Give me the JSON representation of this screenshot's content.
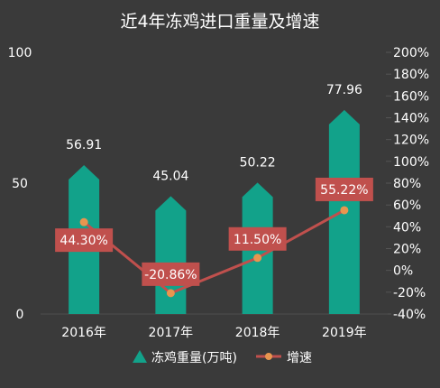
{
  "chart_data": {
    "type": "bar",
    "title": "近4年冻鸡进口重量及增速",
    "categories": [
      "2016年",
      "2017年",
      "2018年",
      "2019年"
    ],
    "series": [
      {
        "name": "冻鸡重量(万吨)",
        "type": "bar",
        "axis": "left",
        "values": [
          56.91,
          45.04,
          50.22,
          77.96
        ],
        "labels": [
          "56.91",
          "45.04",
          "50.22",
          "77.96"
        ],
        "color": "#12a28a"
      },
      {
        "name": "增速",
        "type": "line",
        "axis": "right",
        "values": [
          44.3,
          -20.86,
          11.5,
          55.22
        ],
        "labels": [
          "44.30%",
          "-20.86%",
          "11.50%",
          "55.22%"
        ],
        "color": "#c0504d",
        "marker_color": "#e8954f"
      }
    ],
    "y_left": {
      "ylim": [
        0,
        100
      ],
      "ticks": [
        "0",
        "50",
        "100"
      ]
    },
    "y_right": {
      "ylim": [
        -40,
        200
      ],
      "ticks": [
        "-40%",
        "-20%",
        "0%",
        "20%",
        "40%",
        "60%",
        "80%",
        "100%",
        "120%",
        "140%",
        "160%",
        "180%",
        "200%"
      ]
    },
    "legend_position": "bottom",
    "grid": false
  }
}
